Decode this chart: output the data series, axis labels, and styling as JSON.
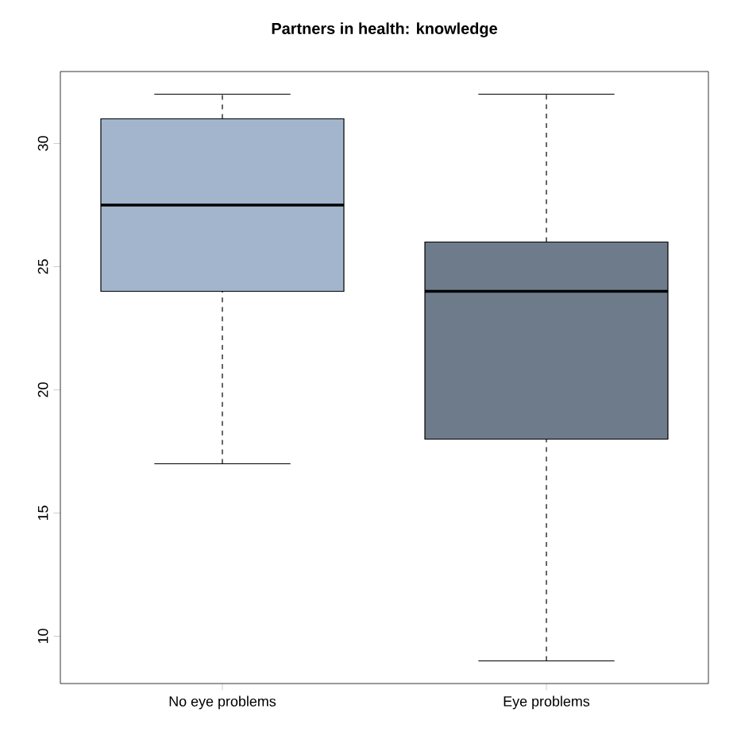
{
  "chart_data": {
    "type": "box",
    "title": "Partners in health: knowledge",
    "categories": [
      "No eye problems",
      "Eye problems"
    ],
    "colors": [
      "#a2b5cd",
      "#6e7b8b"
    ],
    "boxes": [
      {
        "low": 17,
        "q1": 24,
        "median": 27.5,
        "q3": 31,
        "high": 32
      },
      {
        "low": 9,
        "q1": 18,
        "median": 24,
        "q3": 26,
        "high": 32
      }
    ],
    "ylim": [
      8.08,
      32.92
    ],
    "yticks": [
      10,
      15,
      20,
      25,
      30
    ],
    "grid": false
  }
}
